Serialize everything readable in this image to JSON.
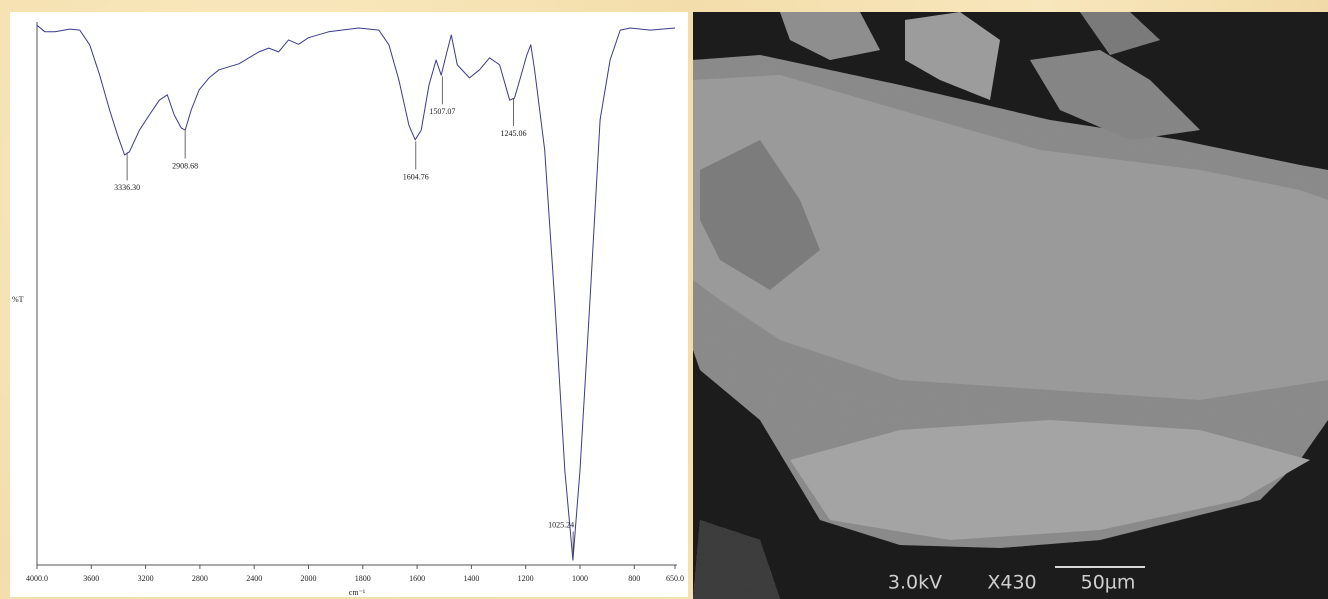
{
  "chart_data": {
    "type": "line",
    "y_label": "%T",
    "x_label": "cm⁻¹",
    "xlim": [
      4000,
      650
    ],
    "x_scale": {
      "break": 2000,
      "ratio": 2
    },
    "xticks": [
      {
        "value": 4000,
        "label": "4000.0"
      },
      3600,
      3200,
      2800,
      2400,
      2000,
      1800,
      1600,
      1400,
      1200,
      1000,
      800,
      {
        "value": 650,
        "label": "650.0"
      }
    ],
    "ylim": [
      0,
      100
    ],
    "color": "#3a3a8c",
    "x": [
      4000,
      3941,
      3868,
      3758,
      3685,
      3612,
      3538,
      3465,
      3407,
      3355,
      3319,
      3245,
      3172,
      3099,
      3040,
      2989,
      2938,
      2908,
      2864,
      2806,
      2733,
      2659,
      2513,
      2366,
      2293,
      2220,
      2147,
      2073,
      2000,
      1926,
      1815,
      1741,
      1704,
      1667,
      1630,
      1607,
      1585,
      1556,
      1530,
      1511,
      1493,
      1474,
      1452,
      1407,
      1370,
      1333,
      1296,
      1259,
      1241,
      1222,
      1196,
      1181,
      1167,
      1130,
      1093,
      1056,
      1026,
      1000,
      963,
      926,
      889,
      852,
      815,
      741,
      650
    ],
    "values": [
      99.4,
      98.2,
      98.2,
      98.7,
      98.5,
      95.8,
      90.2,
      83.8,
      79.2,
      75.5,
      76.1,
      80.1,
      82.9,
      85.6,
      86.6,
      82.9,
      80.5,
      80.1,
      83.8,
      87.5,
      89.7,
      91.2,
      92.3,
      94.5,
      95.2,
      94.5,
      96.7,
      95.9,
      97.1,
      98.2,
      98.9,
      98.5,
      95.8,
      89.3,
      81.0,
      78.3,
      80.1,
      88.4,
      93.0,
      90.2,
      93.9,
      97.6,
      92.1,
      89.7,
      91.2,
      93.4,
      92.1,
      85.6,
      86.0,
      89.3,
      93.9,
      95.8,
      91.2,
      76.4,
      48.8,
      17.5,
      0.9,
      17.5,
      48.8,
      82.0,
      93.0,
      98.5,
      98.9,
      98.5,
      98.9
    ],
    "annotations": [
      {
        "x": 3336.3,
        "y": 76,
        "label": "3336.30"
      },
      {
        "x": 2908.68,
        "y": 80,
        "label": "2908.68"
      },
      {
        "x": 1604.76,
        "y": 78,
        "label": "1604.76"
      },
      {
        "x": 1507.07,
        "y": 90,
        "label": "1507.07"
      },
      {
        "x": 1245.06,
        "y": 86,
        "label": "1245.06"
      },
      {
        "x": 1025.24,
        "y": 1,
        "label": "1025.24"
      }
    ]
  },
  "sem": {
    "voltage": "3.0kV",
    "magnification": "X430",
    "scale": "50µm"
  }
}
